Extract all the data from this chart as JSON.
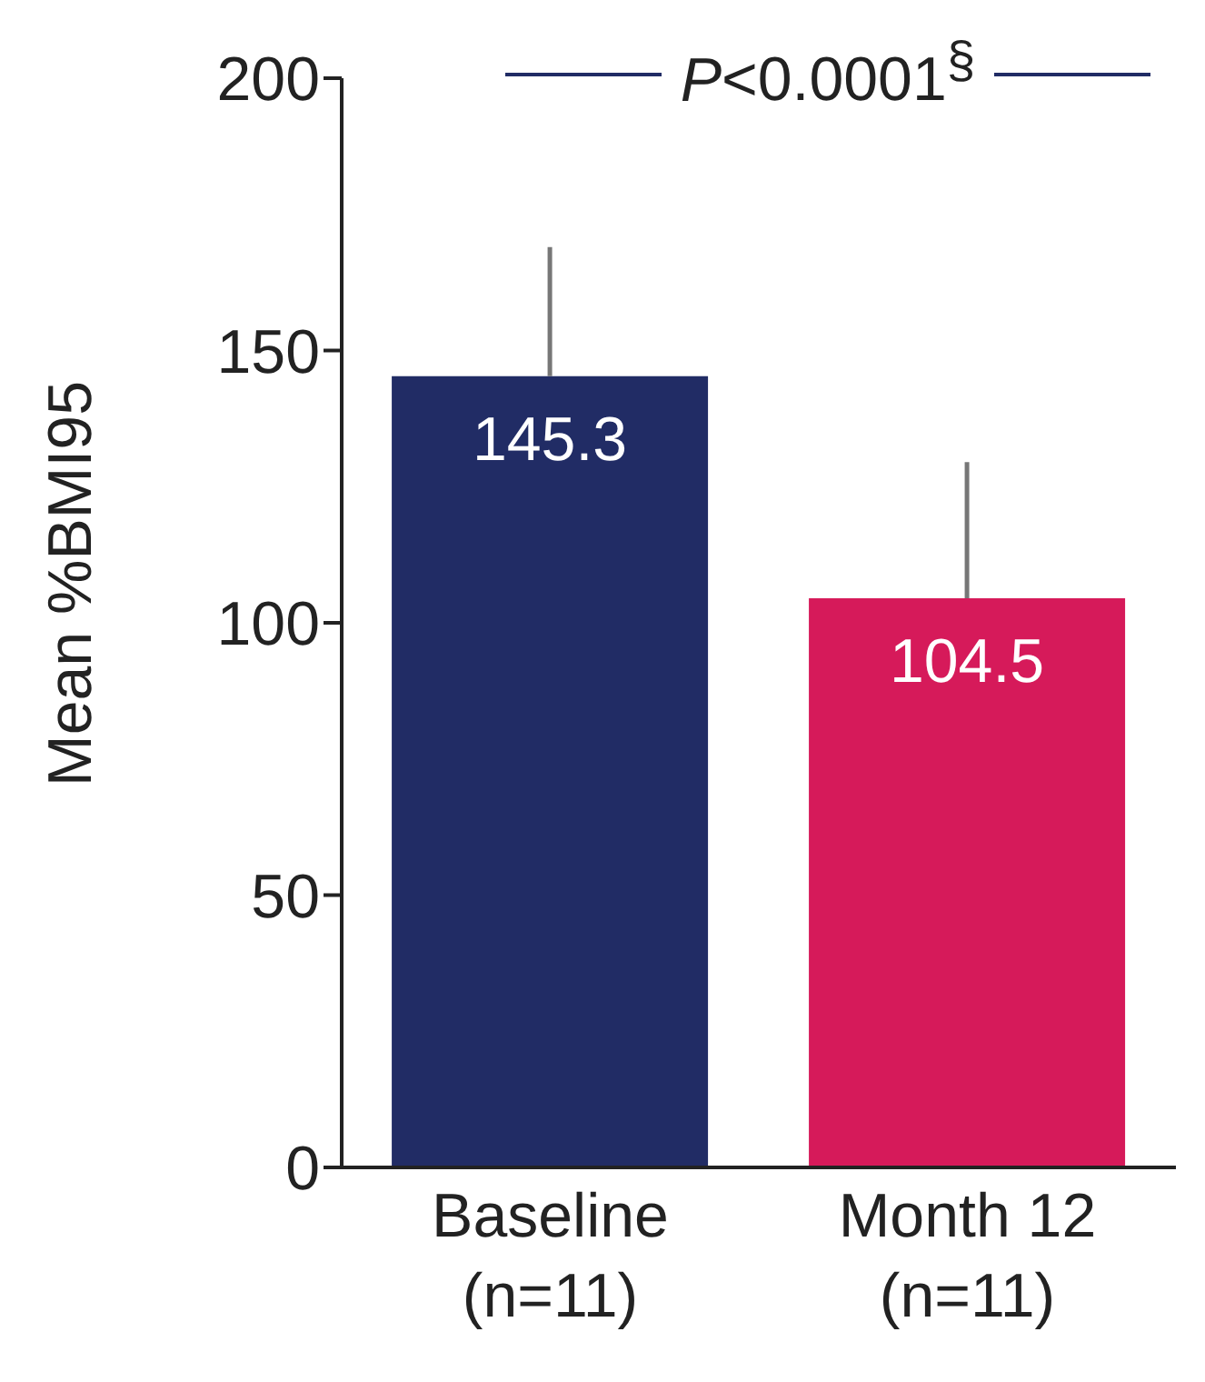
{
  "chart_data": {
    "type": "bar",
    "ylabel": "Mean %BMI95",
    "categories": [
      "Baseline\n(n=11)",
      "Month 12\n(n=11)"
    ],
    "values": [
      145.3,
      104.5
    ],
    "colors": [
      "#212c65",
      "#d61a5a"
    ],
    "errors": [
      [
        145.3,
        169
      ],
      [
        104.5,
        129.5
      ]
    ],
    "ylim": [
      0,
      200
    ],
    "yticks": [
      0,
      50,
      100,
      150,
      200
    ],
    "data_labels": true,
    "grid": false,
    "legend": false,
    "annotations": [
      "P<0.0001$^{§}$"
    ]
  }
}
